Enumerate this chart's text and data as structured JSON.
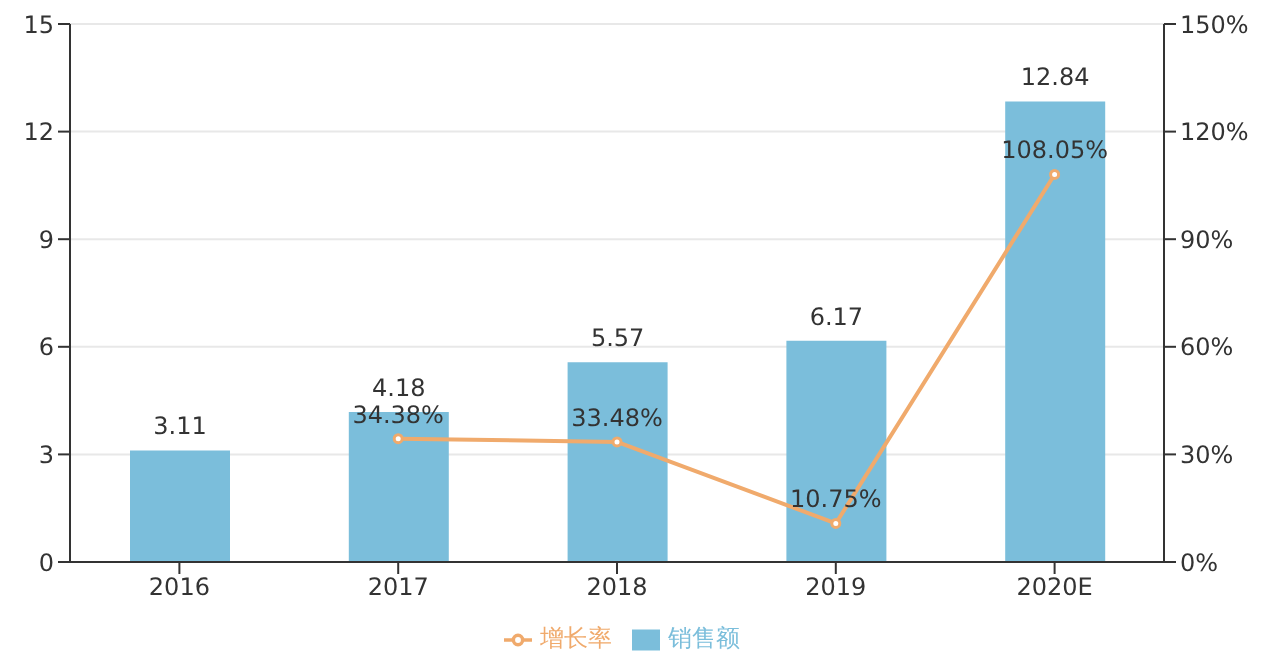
{
  "chart_data": {
    "type": "bar",
    "categories": [
      "2016",
      "2017",
      "2018",
      "2019",
      "2020E"
    ],
    "series": [
      {
        "name": "销售额",
        "color": "#7bbedb",
        "values": [
          3.11,
          4.18,
          5.57,
          6.17,
          12.84
        ],
        "value_labels": [
          "3.11",
          "4.18",
          "5.57",
          "6.17",
          "12.84"
        ]
      },
      {
        "name": "增长率",
        "type": "line",
        "axis": "y2",
        "color": "#f0aa6c",
        "values": [
          null,
          34.38,
          33.48,
          10.75,
          108.05
        ],
        "value_labels": [
          null,
          "34.38%",
          "33.48%",
          "10.75%",
          "108.05%"
        ]
      }
    ],
    "ylim": [
      0,
      15
    ],
    "yticks": [
      0,
      3,
      6,
      9,
      12,
      15
    ],
    "y2lim": [
      0,
      150
    ],
    "y2ticks": [
      {
        "value": 0,
        "label": "0%"
      },
      {
        "value": 30,
        "label": "30%"
      },
      {
        "value": 60,
        "label": "60%"
      },
      {
        "value": 90,
        "label": "90%"
      },
      {
        "value": 120,
        "label": "120%"
      },
      {
        "value": 150,
        "label": "150%"
      }
    ],
    "grid": "y",
    "legend": "bottom",
    "marker": "circle",
    "line_style": "solid"
  }
}
